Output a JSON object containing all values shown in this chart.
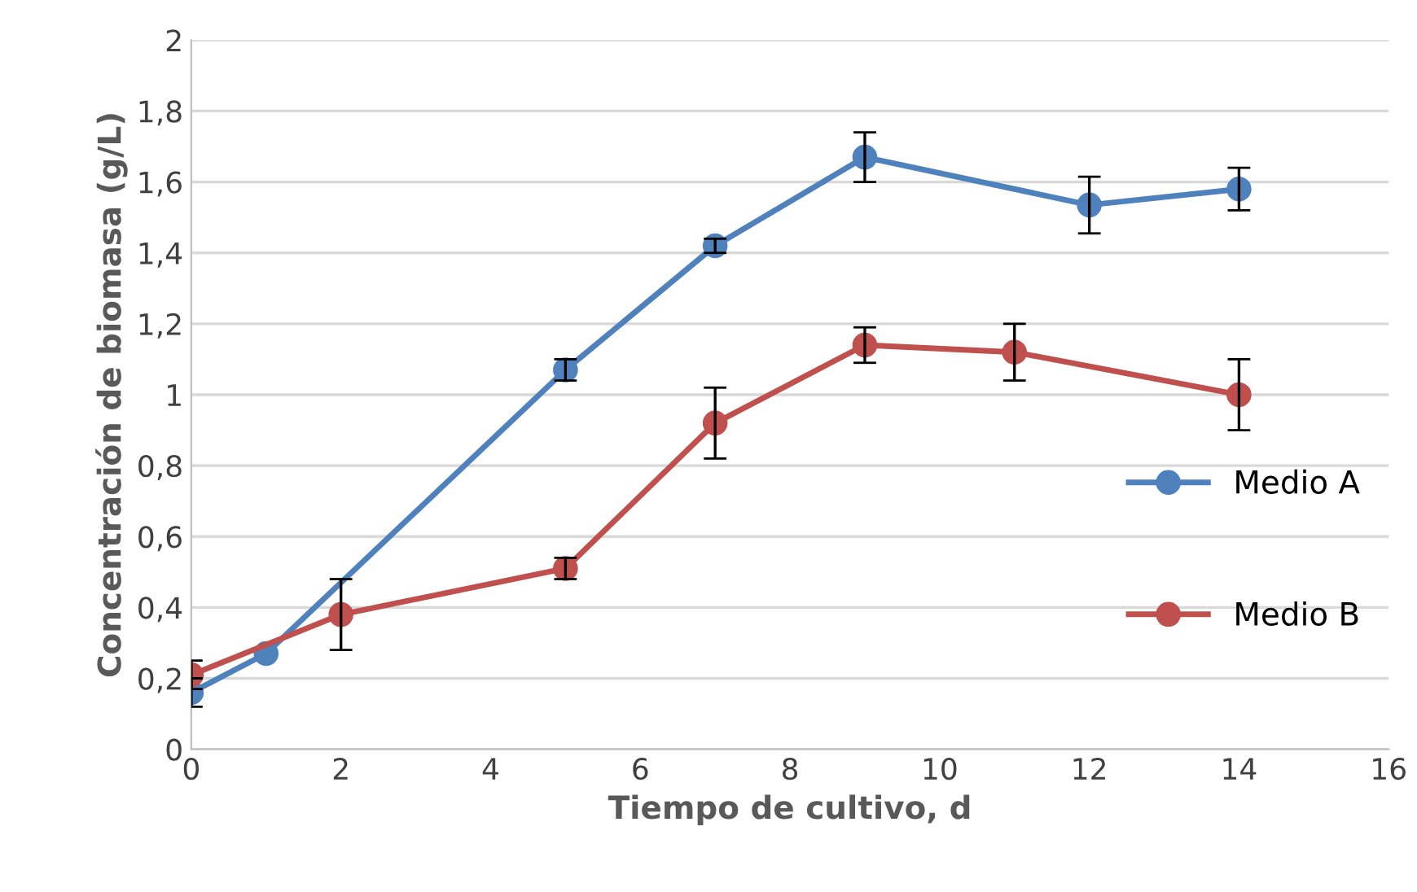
{
  "chart_data": {
    "type": "line",
    "xlabel": "Tiempo de cultivo, d",
    "ylabel": "Concentración de biomasa (g/L)",
    "series": [
      {
        "name": "Medio A",
        "color": "#4f81bd",
        "x": [
          0,
          1,
          5,
          7,
          9,
          12,
          14
        ],
        "values": [
          0.16,
          0.27,
          1.07,
          1.42,
          1.67,
          1.535,
          1.58
        ],
        "errors": [
          0.04,
          null,
          0.03,
          0.02,
          0.07,
          0.08,
          0.06
        ]
      },
      {
        "name": "Medio B",
        "color": "#c0504d",
        "x": [
          0,
          2,
          5,
          7,
          9,
          11,
          14
        ],
        "values": [
          0.21,
          0.38,
          0.51,
          0.92,
          1.14,
          1.12,
          1.0
        ],
        "errors": [
          0.04,
          0.1,
          0.03,
          0.1,
          0.05,
          0.08,
          0.1
        ]
      }
    ],
    "xlim": [
      0,
      16
    ],
    "xticks": [
      0,
      2,
      4,
      6,
      8,
      10,
      12,
      14,
      16
    ],
    "ylim": [
      0,
      2
    ],
    "yticks": [
      0,
      {
        "value": 0.2,
        "label": "0,2"
      },
      {
        "value": 0.4,
        "label": "0,4"
      },
      {
        "value": 0.6,
        "label": "0,6"
      },
      {
        "value": 0.8,
        "label": "0,8"
      },
      1,
      {
        "value": 1.2,
        "label": "1,2"
      },
      {
        "value": 1.4,
        "label": "1,4"
      },
      {
        "value": 1.6,
        "label": "1,6"
      },
      {
        "value": 1.8,
        "label": "1,8"
      },
      2
    ],
    "grid": "y",
    "legend": "right",
    "marker": "circle",
    "line_style": "solid"
  }
}
